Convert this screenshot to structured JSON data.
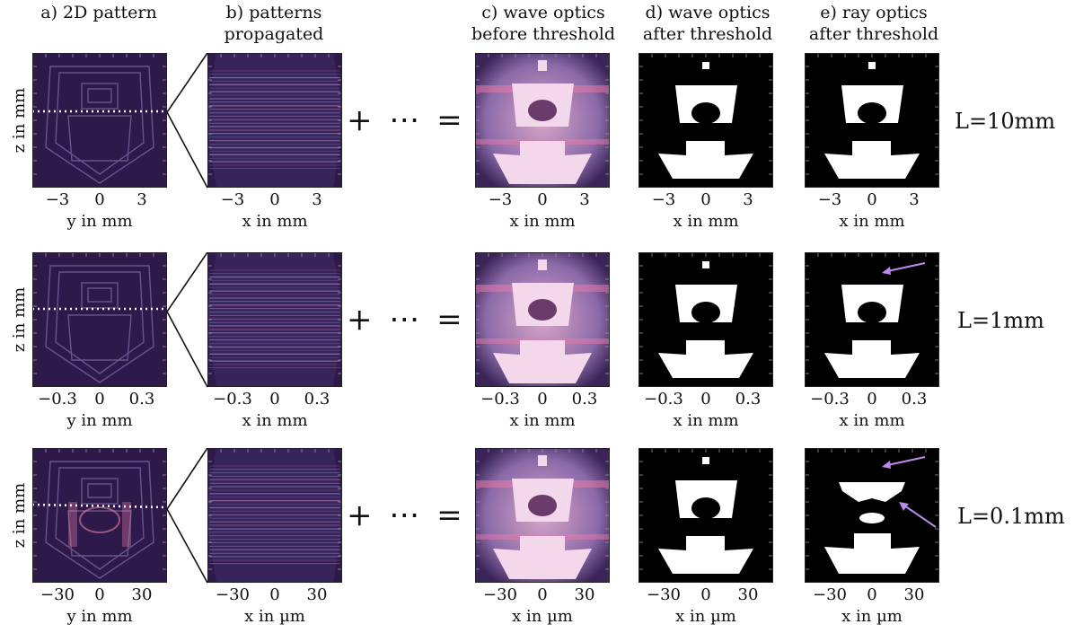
{
  "headers": {
    "a": "a) 2D pattern",
    "b_line1": "b) patterns",
    "b_line2": "propagated",
    "c_line1": "c) wave optics",
    "c_line2": "before threshold",
    "d_line1": "d) wave optics",
    "d_line2": "after threshold",
    "e_line1": "e) ray optics",
    "e_line2": "after threshold"
  },
  "rows": [
    {
      "length_label": "L=10mm",
      "ticks": [
        "−3",
        "0",
        "3"
      ],
      "xlabel_a": "y in mm",
      "xlabel": "x in mm",
      "zlabel": "z in mm",
      "operator": "+ ⋯ ="
    },
    {
      "length_label": "L=1mm",
      "ticks": [
        "−0.3",
        "0",
        "0.3"
      ],
      "xlabel_a": "y in mm",
      "xlabel": "x in mm",
      "zlabel": "z in mm",
      "operator": "+ ⋯ ="
    },
    {
      "length_label": "L=0.1mm",
      "ticks": [
        "−30",
        "0",
        "30"
      ],
      "xlabel_a": "y in mm",
      "xlabel": "x in µm",
      "zlabel": "z in mm",
      "operator": "+ ⋯ ="
    }
  ],
  "colors": {
    "pattern_bg": "#2e1a4a",
    "pink": "#e87aa8",
    "arrow": "#b98be8"
  }
}
